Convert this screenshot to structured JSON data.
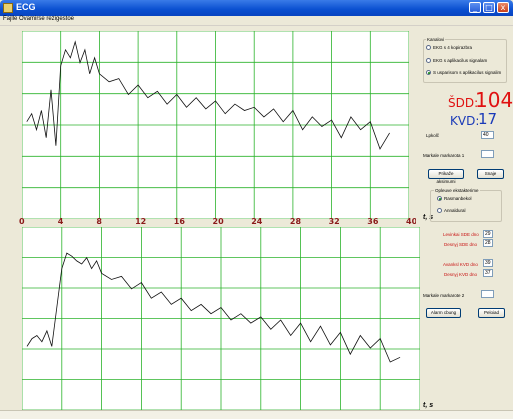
{
  "window": {
    "title": "ECG",
    "close_glyph": "x",
    "minimize_glyph": "_",
    "maximize_glyph": "□"
  },
  "menu": [
    "Fajlle",
    "Ovamirse rezigestoe"
  ],
  "plot1": {
    "x_ticks": [
      "0",
      "4",
      "8",
      "12",
      "16",
      "20",
      "24",
      "28",
      "32",
      "36",
      "40"
    ],
    "x_label": "t, s",
    "grid_color": "#2bb32b",
    "trace_color": "#111111"
  },
  "plot2": {
    "x_label": "t, s"
  },
  "chart_data": [
    {
      "type": "line",
      "x_range": [
        0,
        40
      ],
      "x": [
        0.5,
        1,
        1.5,
        2,
        2.5,
        3,
        3.5,
        4,
        4.5,
        5,
        5.5,
        6,
        6.5,
        7,
        7.5,
        8,
        9,
        10,
        11,
        12,
        13,
        14,
        15,
        16,
        17,
        18,
        19,
        20,
        21,
        22,
        23,
        24,
        25,
        26,
        27,
        28,
        29,
        30,
        31,
        32,
        33,
        34,
        35,
        36,
        37,
        38
      ],
      "y": [
        0.55,
        0.6,
        0.5,
        0.62,
        0.45,
        0.75,
        0.4,
        0.9,
        1.0,
        0.95,
        1.05,
        0.92,
        1.0,
        0.85,
        0.95,
        0.85,
        0.8,
        0.82,
        0.72,
        0.78,
        0.7,
        0.74,
        0.66,
        0.72,
        0.64,
        0.7,
        0.63,
        0.68,
        0.6,
        0.66,
        0.62,
        0.64,
        0.58,
        0.63,
        0.55,
        0.62,
        0.5,
        0.58,
        0.52,
        0.56,
        0.45,
        0.58,
        0.5,
        0.55,
        0.38,
        0.48
      ],
      "grid": true
    },
    {
      "type": "line",
      "x_range": [
        0,
        40
      ],
      "x": [
        0.5,
        1,
        1.5,
        2,
        2.5,
        3,
        3.5,
        4,
        4.5,
        5,
        5.5,
        6,
        6.5,
        7,
        7.5,
        8,
        9,
        10,
        11,
        12,
        13,
        14,
        15,
        16,
        17,
        18,
        19,
        20,
        21,
        22,
        23,
        24,
        25,
        26,
        27,
        28,
        29,
        30,
        31,
        32,
        33,
        34,
        35,
        36,
        37,
        38
      ],
      "y": [
        0.35,
        0.4,
        0.42,
        0.38,
        0.45,
        0.35,
        0.6,
        0.85,
        0.95,
        0.93,
        0.9,
        0.88,
        0.92,
        0.85,
        0.9,
        0.82,
        0.78,
        0.8,
        0.72,
        0.76,
        0.66,
        0.7,
        0.62,
        0.66,
        0.58,
        0.62,
        0.56,
        0.6,
        0.52,
        0.56,
        0.5,
        0.54,
        0.46,
        0.52,
        0.42,
        0.5,
        0.38,
        0.48,
        0.36,
        0.44,
        0.3,
        0.42,
        0.34,
        0.4,
        0.25,
        0.28
      ],
      "grid": true
    }
  ],
  "panel": {
    "group1_title": "Kanalovi",
    "radio1": "EKG s 4 kopirazbra",
    "radio2": "EKG s aplikacilus signalam",
    "radio3": "S usparisom s aplikacilus signalim",
    "sdd_label": "ŠDD:",
    "sdd_value": "104",
    "kvd_label": "KVD:",
    "kvd_value": "17",
    "korak_label": "Lpkolč",
    "korak_value": "40",
    "marker1_label": "Markale markarota 1",
    "btn_prikazi": "Prikaže aksimumi",
    "btn_snimi": "Snaje",
    "group2_title": "Opleuve ekstakterime",
    "radio4": "Rasmanbekol",
    "radio5": "Annaldural",
    "f1_label": "Levinkai SDE dno",
    "f1_value": "29",
    "f2_label": "Desnyj SDE dno",
    "f2_value": "28",
    "f3_label": "Avanksl KVD dno",
    "f3_value": "39",
    "f4_label": "Desnyj KVD dno",
    "f4_value": "37",
    "marker2_label": "Markale markarote 2",
    "btn_alarm": "Alarm cbung",
    "btn_reload": "Peloiad"
  },
  "colors": {
    "red": "#e01010",
    "blue": "#1a3ab8"
  }
}
